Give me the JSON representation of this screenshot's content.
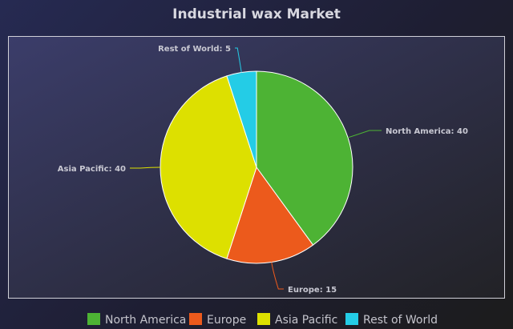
{
  "chart_data": {
    "type": "pie",
    "title": "Industrial wax Market",
    "categories": [
      "North America",
      "Europe",
      "Asia Pacific",
      "Rest of World"
    ],
    "values": [
      40,
      15,
      40,
      5
    ],
    "colors": [
      "#4db334",
      "#ec5a1c",
      "#dde000",
      "#24cce6"
    ],
    "data_labels": [
      "North America: 40",
      "Europe: 15",
      "Asia Pacific: 40",
      "Rest of World: 5"
    ],
    "legend": {
      "position": "bottom",
      "items": [
        "North America",
        "Europe",
        "Asia Pacific",
        "Rest of World"
      ]
    },
    "start_angle": "12 o'clock",
    "direction": "clockwise"
  }
}
